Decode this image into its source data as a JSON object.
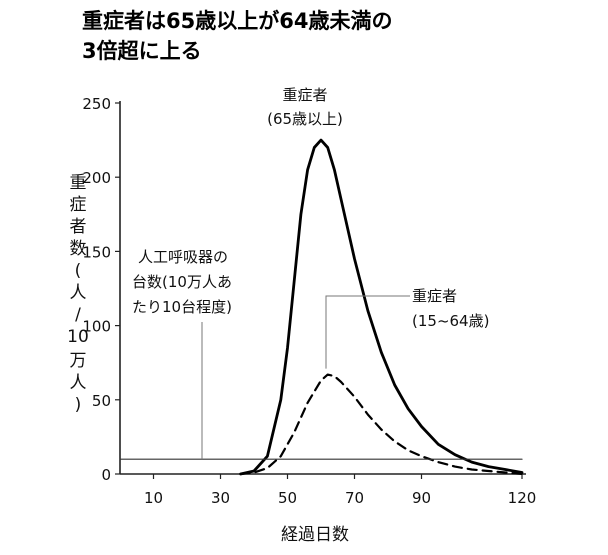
{
  "chart_data": {
    "type": "line",
    "title": [
      "重症者は65歳以上が64歳未満の",
      "3倍超に上る"
    ],
    "xlabel": "経過日数",
    "ylabel": [
      "重",
      "症",
      "者",
      "数",
      "(",
      "人",
      "/",
      "10",
      "万",
      "人",
      ")"
    ],
    "xlim": [
      0,
      120
    ],
    "ylim": [
      0,
      250
    ],
    "xticks": [
      10,
      30,
      50,
      70,
      90,
      120
    ],
    "xtick_labels": [
      "10",
      "30",
      "50",
      "70",
      "90",
      "120"
    ],
    "yticks": [
      0,
      50,
      100,
      150,
      200,
      250
    ],
    "ytick_labels": [
      "0",
      "50",
      "100",
      "150",
      "200",
      "250"
    ],
    "series": [
      {
        "name": "重症者(65歳以上)",
        "style": "solid",
        "color": "#000000",
        "x": [
          36,
          40,
          44,
          48,
          50,
          52,
          54,
          56,
          58,
          60,
          62,
          64,
          66,
          70,
          74,
          78,
          82,
          86,
          90,
          95,
          100,
          105,
          110,
          115,
          120
        ],
        "y": [
          0,
          2,
          12,
          50,
          85,
          130,
          175,
          205,
          220,
          225,
          220,
          205,
          185,
          145,
          110,
          82,
          60,
          44,
          32,
          20,
          13,
          8,
          5,
          3,
          1
        ]
      },
      {
        "name": "重症者(15~64歳)",
        "style": "dashed",
        "color": "#000000",
        "x": [
          36,
          40,
          44,
          48,
          52,
          56,
          60,
          62,
          64,
          66,
          70,
          74,
          78,
          82,
          86,
          90,
          95,
          100,
          105,
          110,
          115,
          120
        ],
        "y": [
          0,
          1,
          4,
          12,
          28,
          48,
          63,
          67,
          66,
          62,
          52,
          40,
          30,
          22,
          16,
          12,
          8,
          5,
          3,
          2,
          1,
          0
        ]
      },
      {
        "name": "人工呼吸器の台数(10万人あたり10台程度)",
        "style": "solid-thin",
        "color": "#333333",
        "x": [
          0,
          120
        ],
        "y": [
          10,
          10
        ]
      }
    ],
    "annotations": [
      {
        "series": 0,
        "lines": [
          "重症者",
          "(65歳以上)"
        ]
      },
      {
        "series": 1,
        "lines": [
          "重症者",
          "(15~64歳)"
        ]
      },
      {
        "series": 2,
        "lines": [
          "人工呼吸器の",
          "台数(10万人あ",
          "たり10台程度)"
        ]
      }
    ]
  }
}
